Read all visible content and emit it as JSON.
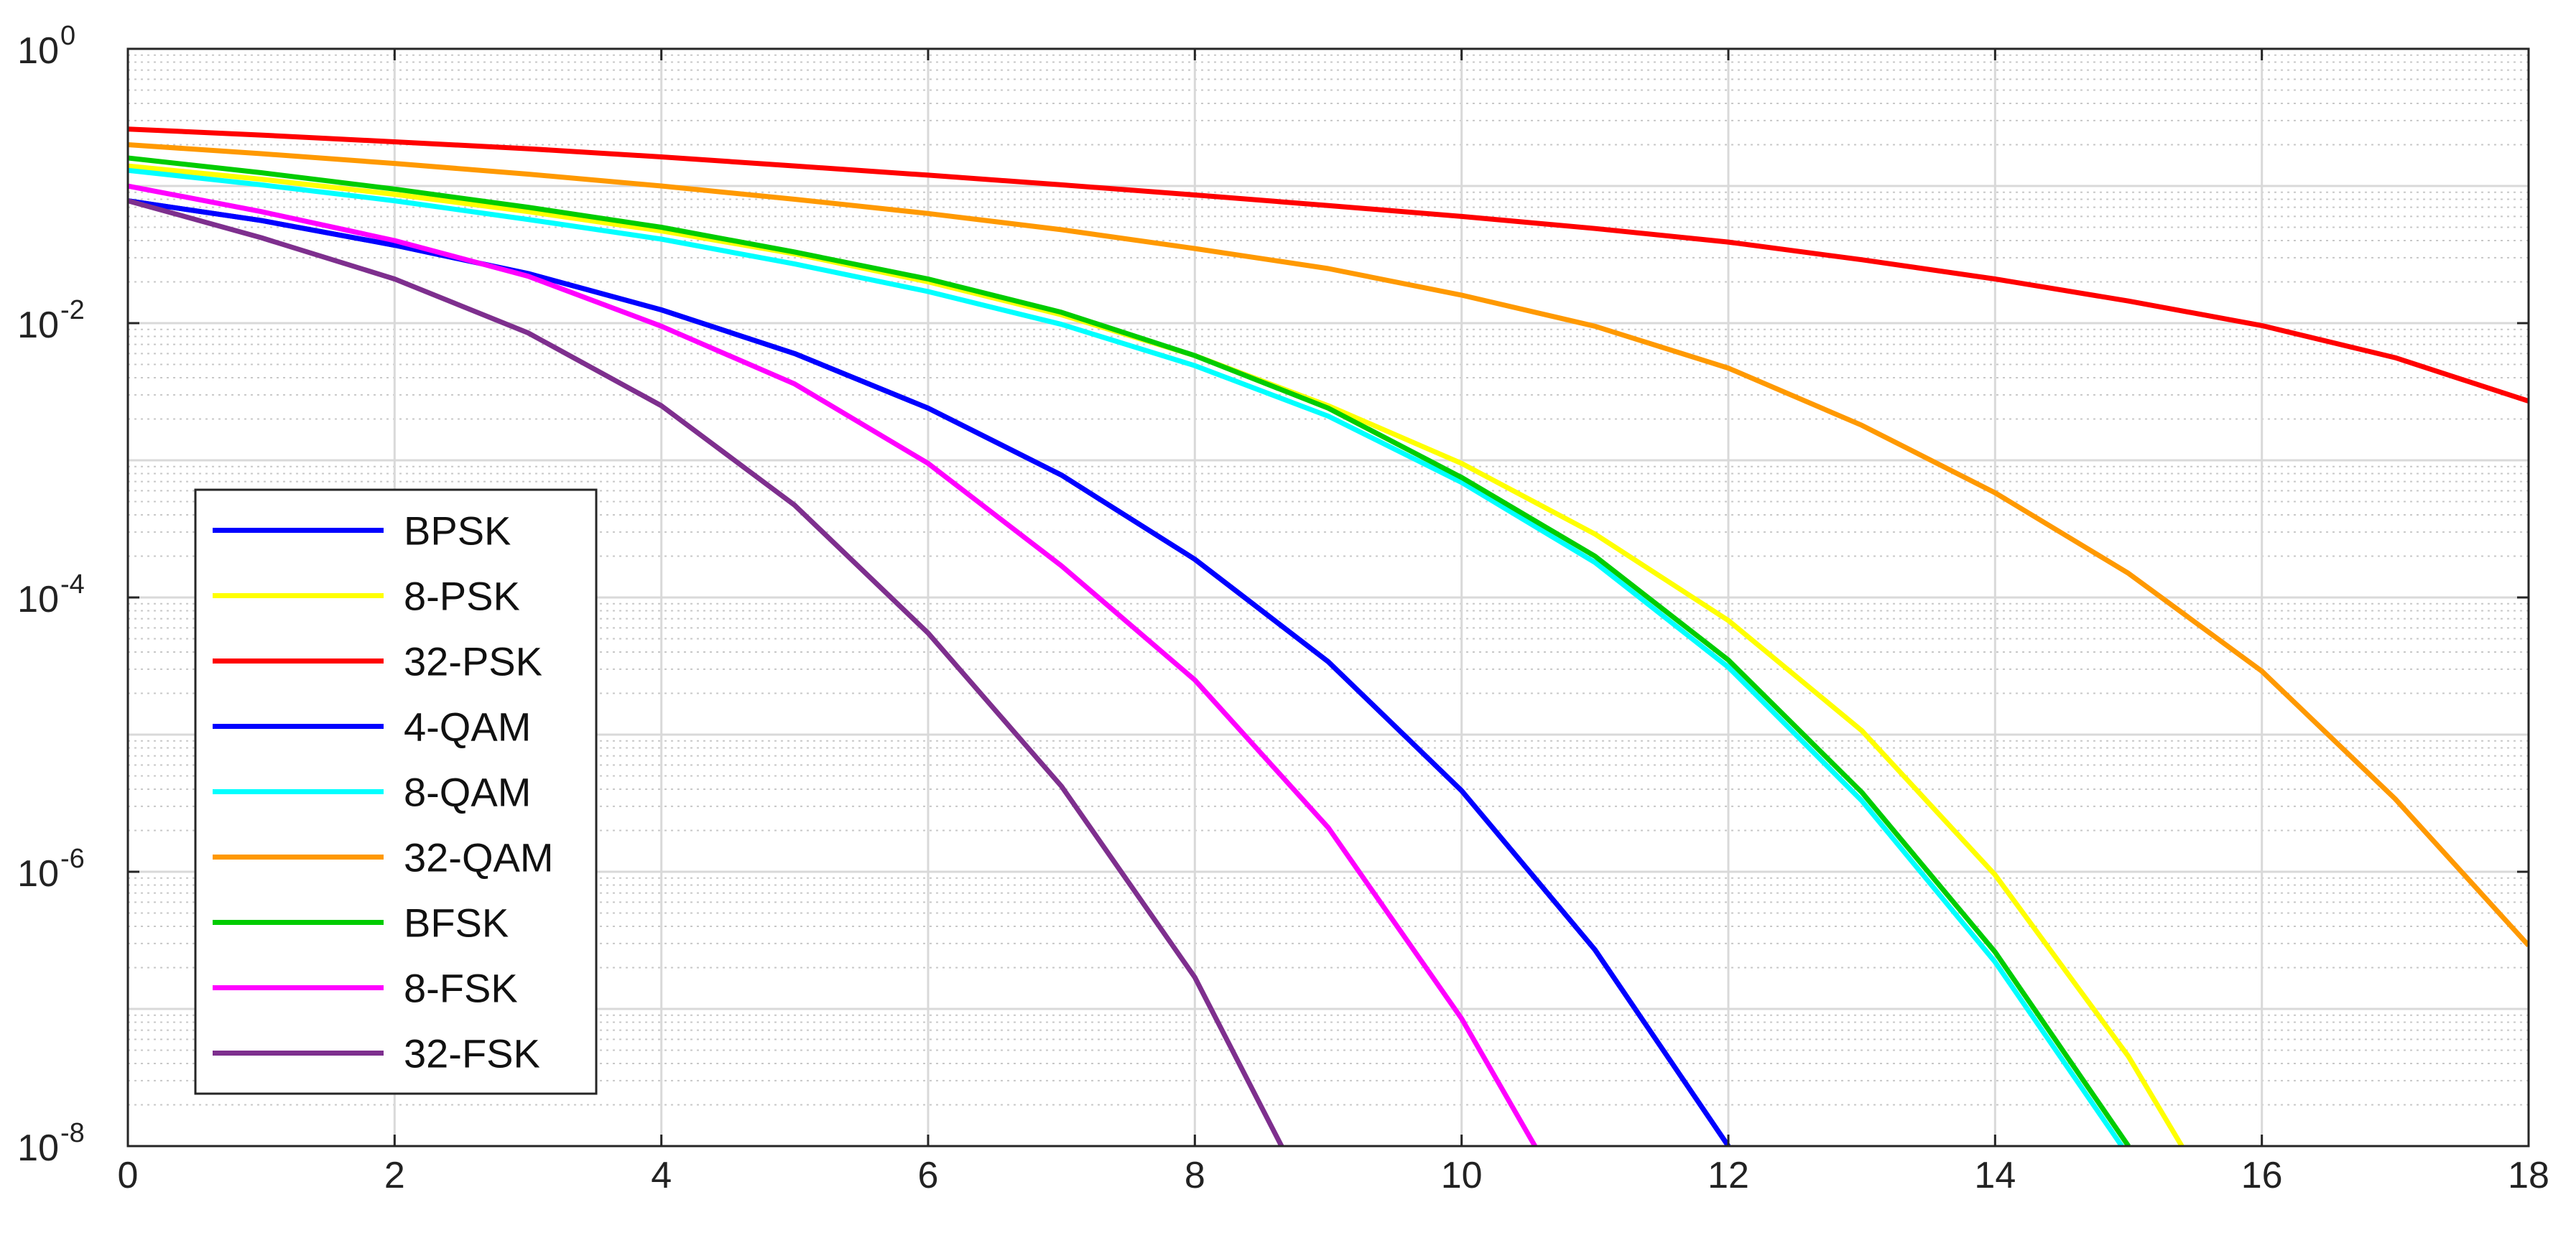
{
  "chart_data": {
    "type": "line",
    "title": "",
    "xlabel": "",
    "ylabel": "",
    "xlim": [
      0,
      18
    ],
    "ylim": [
      1e-08,
      1
    ],
    "yscale": "log",
    "grid": true,
    "minor_grid": true,
    "legend_position": "left",
    "x_ticks": [
      0,
      2,
      4,
      6,
      8,
      10,
      12,
      14,
      16,
      18
    ],
    "y_ticks": [
      {
        "value": 1,
        "base": "10",
        "exp": "0"
      },
      {
        "value": 0.01,
        "base": "10",
        "exp": "-2"
      },
      {
        "value": 0.0001,
        "base": "10",
        "exp": "-4"
      },
      {
        "value": 1e-06,
        "base": "10",
        "exp": "-6"
      },
      {
        "value": 1e-08,
        "base": "10",
        "exp": "-8"
      }
    ],
    "series": [
      {
        "name": "BPSK",
        "color": "#0000ff",
        "x": [
          0,
          1,
          2,
          3,
          4,
          5,
          6,
          7,
          8,
          9,
          10,
          11,
          12
        ],
        "y": [
          0.078,
          0.056,
          0.037,
          0.023,
          0.0125,
          0.006,
          0.0024,
          0.00078,
          0.00019,
          3.4e-05,
          3.9e-06,
          2.7e-07,
          1e-08
        ]
      },
      {
        "name": "8-PSK",
        "color": "#ffff00",
        "x": [
          0,
          1,
          2,
          3,
          4,
          5,
          6,
          7,
          8,
          9,
          10,
          11,
          12,
          13,
          14,
          15,
          15.4
        ],
        "y": [
          0.14,
          0.112,
          0.087,
          0.065,
          0.047,
          0.032,
          0.02,
          0.0115,
          0.0058,
          0.0025,
          0.00095,
          0.00029,
          6.8e-05,
          1.07e-05,
          9.5e-07,
          4.5e-08,
          1e-08
        ]
      },
      {
        "name": "32-PSK",
        "color": "#ff0000",
        "x": [
          0,
          1,
          2,
          3,
          4,
          5,
          6,
          7,
          8,
          9,
          10,
          11,
          12,
          13,
          14,
          15,
          16,
          17,
          18
        ],
        "y": [
          0.26,
          0.235,
          0.21,
          0.187,
          0.163,
          0.14,
          0.12,
          0.102,
          0.086,
          0.072,
          0.06,
          0.049,
          0.039,
          0.029,
          0.021,
          0.0145,
          0.0096,
          0.0056,
          0.0027
        ]
      },
      {
        "name": "4-QAM",
        "color": "#0000ff",
        "x": [
          0,
          1,
          2,
          3,
          4,
          5,
          6,
          7,
          8,
          9,
          10,
          11,
          12
        ],
        "y": [
          0.078,
          0.056,
          0.037,
          0.023,
          0.0125,
          0.006,
          0.0024,
          0.00078,
          0.00019,
          3.4e-05,
          3.9e-06,
          2.7e-07,
          1e-08
        ]
      },
      {
        "name": "8-QAM",
        "color": "#00ffff",
        "x": [
          0,
          1,
          2,
          3,
          4,
          5,
          6,
          7,
          8,
          9,
          10,
          11,
          12,
          13,
          14,
          14.95
        ],
        "y": [
          0.13,
          0.102,
          0.078,
          0.057,
          0.041,
          0.027,
          0.017,
          0.0098,
          0.0049,
          0.0021,
          0.00069,
          0.00018,
          3.1e-05,
          3.3e-06,
          2.2e-07,
          1e-08
        ]
      },
      {
        "name": "32-QAM",
        "color": "#ff9900",
        "x": [
          0,
          1,
          2,
          3,
          4,
          5,
          6,
          7,
          8,
          9,
          10,
          11,
          12,
          13,
          14,
          15,
          16,
          17,
          18
        ],
        "y": [
          0.2,
          0.172,
          0.146,
          0.122,
          0.1,
          0.08,
          0.063,
          0.048,
          0.035,
          0.025,
          0.016,
          0.0095,
          0.0047,
          0.0018,
          0.00058,
          0.00015,
          2.9e-05,
          3.4e-06,
          2.9e-07
        ]
      },
      {
        "name": "BFSK",
        "color": "#00cc00",
        "x": [
          0,
          1,
          2,
          3,
          4,
          5,
          6,
          7,
          8,
          9,
          10,
          11,
          12,
          13,
          14,
          15
        ],
        "y": [
          0.16,
          0.125,
          0.095,
          0.07,
          0.05,
          0.033,
          0.021,
          0.012,
          0.0058,
          0.0024,
          0.00075,
          0.0002,
          3.5e-05,
          3.8e-06,
          2.6e-07,
          1e-08
        ]
      },
      {
        "name": "8-FSK",
        "color": "#ff00ff",
        "x": [
          0,
          1,
          2,
          3,
          4,
          5,
          6,
          7,
          8,
          9,
          10,
          10.55
        ],
        "y": [
          0.1,
          0.065,
          0.04,
          0.022,
          0.0095,
          0.0036,
          0.00095,
          0.00017,
          2.5e-05,
          2.1e-06,
          8.5e-08,
          1e-08
        ]
      },
      {
        "name": "32-FSK",
        "color": "#7e2f8e",
        "x": [
          0,
          1,
          2,
          3,
          4,
          5,
          6,
          7,
          8,
          8.65
        ],
        "y": [
          0.078,
          0.042,
          0.021,
          0.0085,
          0.0025,
          0.00047,
          5.5e-05,
          4.2e-06,
          1.7e-07,
          1e-08
        ]
      }
    ]
  }
}
